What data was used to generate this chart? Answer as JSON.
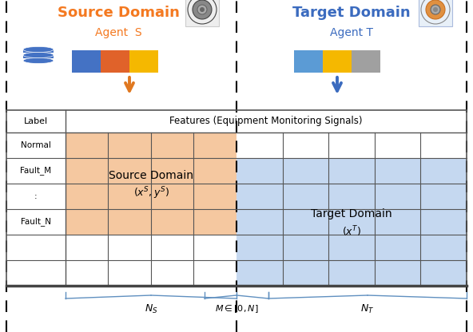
{
  "fig_width": 5.92,
  "fig_height": 4.16,
  "dpi": 100,
  "source_domain_title": "Source Domain",
  "source_domain_subtitle": "Agent  S",
  "target_domain_title": "Target Domain",
  "target_domain_subtitle": "Agent T",
  "source_title_color": "#F47920",
  "target_title_color": "#3B6BBF",
  "label_col_header": "Label",
  "features_col_header": "Features (Equipment Monitoring Signals)",
  "row_labels": [
    "Normal",
    "Fault_M",
    ":",
    "Fault_N"
  ],
  "source_domain_label": "Source Domain",
  "source_domain_sublabel": "$(x^S, y^S)$",
  "target_domain_label": "Target Domain",
  "target_domain_sublabel": "$(x^T)$",
  "source_fill_color": "#F5C8A0",
  "target_fill_color": "#C5D8F0",
  "grid_color": "#555555",
  "grid_color_light": "#888888",
  "N_s_label": "$N_S$",
  "M_label": "$M \\in [0, N]$",
  "N_t_label": "$N_T$",
  "brace_color": "#6090C0",
  "col_bar_colors_source": [
    "#4472C4",
    "#E0622A",
    "#F5B800"
  ],
  "col_bar_colors_target": [
    "#5B9BD5",
    "#F5B800",
    "#A0A0A0"
  ],
  "db_color": "#4472C4",
  "arrow_source_color": "#E07820",
  "arrow_target_color": "#3B6BBF",
  "bg_color": "#FFFFFF"
}
